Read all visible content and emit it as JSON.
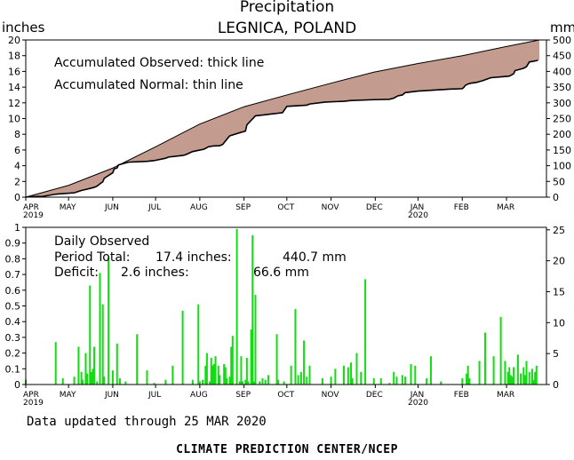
{
  "header": {
    "title": "Precipitation",
    "location": "LEGNICA, POLAND",
    "unit_left": "inches",
    "unit_right": "mm"
  },
  "colors": {
    "deficit_fill": "#c39c8f",
    "bar_color": "#11dd11",
    "axis": "#000000",
    "background": "#ffffff"
  },
  "month_ticks": [
    "APR",
    "MAY",
    "JUN",
    "JUL",
    "AUG",
    "SEP",
    "OCT",
    "NOV",
    "DEC",
    "JAN",
    "FEB",
    "MAR"
  ],
  "year_ticks": [
    {
      "month_index": 0,
      "label": "2019"
    },
    {
      "month_index": 9,
      "label": "2020"
    }
  ],
  "chart_data": [
    {
      "type": "area",
      "panel": "accumulated",
      "legend": [
        "Accumulated Observed: thick line",
        "Accumulated Normal: thin line"
      ],
      "x_unit": "days since 1 Apr 2019",
      "ylim": [
        0,
        20
      ],
      "yticks_left": [
        "0",
        "2",
        "4",
        "6",
        "8",
        "10",
        "12",
        "14",
        "16",
        "18",
        "20"
      ],
      "yticks_right": [
        "0",
        "50",
        "100",
        "150",
        "200",
        "250",
        "300",
        "350",
        "400",
        "450",
        "500"
      ],
      "series": [
        {
          "name": "Accumulated Normal",
          "x": [
            0,
            30,
            61,
            91,
            122,
            153,
            183,
            214,
            244,
            275,
            306,
            335,
            360
          ],
          "values": [
            0,
            1.5,
            3.7,
            6.4,
            9.3,
            11.5,
            13.0,
            14.5,
            15.9,
            17.0,
            18.0,
            19.1,
            20.0
          ]
        },
        {
          "name": "Accumulated Observed",
          "x": [
            0,
            2,
            12,
            21,
            26,
            34,
            39,
            46,
            48,
            50,
            52,
            54,
            55,
            61,
            62,
            64,
            65,
            66,
            72,
            85,
            90,
            98,
            100,
            110,
            112,
            117,
            121,
            125,
            128,
            131,
            136,
            138,
            142,
            143,
            150,
            154,
            155,
            161,
            166,
            180,
            183,
            197,
            199,
            210,
            223,
            228,
            244,
            255,
            258,
            261,
            264,
            266,
            275,
            298,
            306,
            307,
            308,
            310,
            312,
            316,
            318,
            320,
            323,
            326,
            333,
            339,
            342,
            343,
            349,
            351,
            352,
            353,
            359
          ],
          "values": [
            0,
            0.05,
            0.1,
            0.38,
            0.45,
            0.55,
            0.85,
            1.15,
            1.25,
            1.4,
            1.7,
            1.95,
            2.4,
            3.1,
            3.6,
            3.7,
            4.1,
            4.15,
            4.45,
            4.55,
            4.65,
            4.95,
            5.1,
            5.3,
            5.4,
            5.8,
            5.95,
            6.1,
            6.4,
            6.5,
            6.55,
            6.7,
            7.6,
            7.8,
            8.2,
            8.4,
            9.2,
            10.35,
            10.45,
            10.75,
            11.55,
            11.7,
            11.85,
            12.1,
            12.2,
            12.3,
            12.4,
            12.45,
            12.6,
            12.9,
            13.0,
            13.3,
            13.5,
            13.75,
            13.8,
            13.95,
            14.2,
            14.4,
            14.5,
            14.6,
            14.7,
            14.8,
            15.0,
            15.2,
            15.3,
            15.4,
            15.7,
            16.1,
            16.4,
            16.6,
            16.9,
            17.2,
            17.4
          ]
        }
      ]
    },
    {
      "type": "bar",
      "panel": "daily",
      "title": "Daily Observed",
      "annotation_lines": [
        {
          "label": "Period Total:",
          "inches": "17.4 inches:",
          "mm": "440.7 mm"
        },
        {
          "label": "Deficit:",
          "inches": "2.6 inches:",
          "mm": "66.6 mm"
        }
      ],
      "x_unit": "days since 1 Apr 2019",
      "ylim": [
        0,
        1.0
      ],
      "yticks_left": [
        "0",
        "0.1",
        "0.2",
        "0.3",
        "0.4",
        "0.5",
        "0.6",
        "0.7",
        "0.8",
        "0.9",
        "1"
      ],
      "yticks_right": [
        "0",
        "5",
        "10",
        "15",
        "20",
        "25"
      ],
      "x": [
        0,
        21,
        26,
        34,
        37,
        39,
        40,
        42,
        43,
        45,
        46,
        47,
        48,
        50,
        52,
        54,
        55,
        58,
        61,
        64,
        66,
        70,
        78,
        85,
        90,
        98,
        103,
        110,
        117,
        121,
        122,
        124,
        126,
        127,
        129,
        130,
        131,
        132,
        133,
        135,
        136,
        139,
        140,
        141,
        143,
        144,
        145,
        148,
        150,
        151,
        152,
        154,
        155,
        156,
        158,
        159,
        160,
        161,
        164,
        166,
        168,
        170,
        176,
        177,
        181,
        186,
        189,
        191,
        193,
        195,
        197,
        199,
        208,
        214,
        217,
        223,
        226,
        228,
        229,
        232,
        235,
        238,
        244,
        249,
        255,
        258,
        260,
        264,
        266,
        270,
        273,
        281,
        284,
        291,
        306,
        309,
        310,
        311,
        318,
        322,
        328,
        333,
        336,
        338,
        339,
        340,
        341,
        342,
        345,
        347,
        349,
        350,
        351,
        353,
        355,
        356,
        357,
        358
      ],
      "values": [
        0.03,
        0.27,
        0.04,
        0.05,
        0.24,
        0.08,
        0.03,
        0.2,
        0.07,
        0.63,
        0.08,
        0.1,
        0.24,
        0.02,
        0.71,
        0.51,
        0.05,
        0.81,
        0.09,
        0.26,
        0.04,
        0.02,
        0.32,
        0.09,
        0.01,
        0.03,
        0.12,
        0.47,
        0.03,
        0.51,
        0.02,
        0.03,
        0.12,
        0.2,
        0.02,
        0.17,
        0.12,
        0.13,
        0.18,
        0.12,
        0.06,
        0.13,
        0.11,
        0.04,
        0.05,
        0.24,
        0.31,
        0.99,
        0.02,
        0.18,
        0.02,
        0.03,
        0.17,
        0.02,
        0.35,
        0.95,
        0.02,
        0.57,
        0.02,
        0.04,
        0.03,
        0.06,
        0.32,
        0.03,
        0.02,
        0.12,
        0.48,
        0.06,
        0.08,
        0.28,
        0.05,
        0.12,
        0.04,
        0.05,
        0.1,
        0.12,
        0.11,
        0.14,
        0.04,
        0.2,
        0.08,
        0.67,
        0.04,
        0.04,
        0.01,
        0.08,
        0.05,
        0.06,
        0.05,
        0.13,
        0.12,
        0.04,
        0.18,
        0.02,
        0.04,
        0.07,
        0.12,
        0.04,
        0.15,
        0.33,
        0.18,
        0.43,
        0.15,
        0.08,
        0.11,
        0.06,
        0.05,
        0.11,
        0.19,
        0.07,
        0.11,
        0.06,
        0.15,
        0.08,
        0.1,
        0.03,
        0.08,
        0.12
      ]
    }
  ],
  "footer": {
    "updated": "Data updated through 25 MAR 2020",
    "credit": "CLIMATE PREDICTION CENTER/NCEP"
  }
}
